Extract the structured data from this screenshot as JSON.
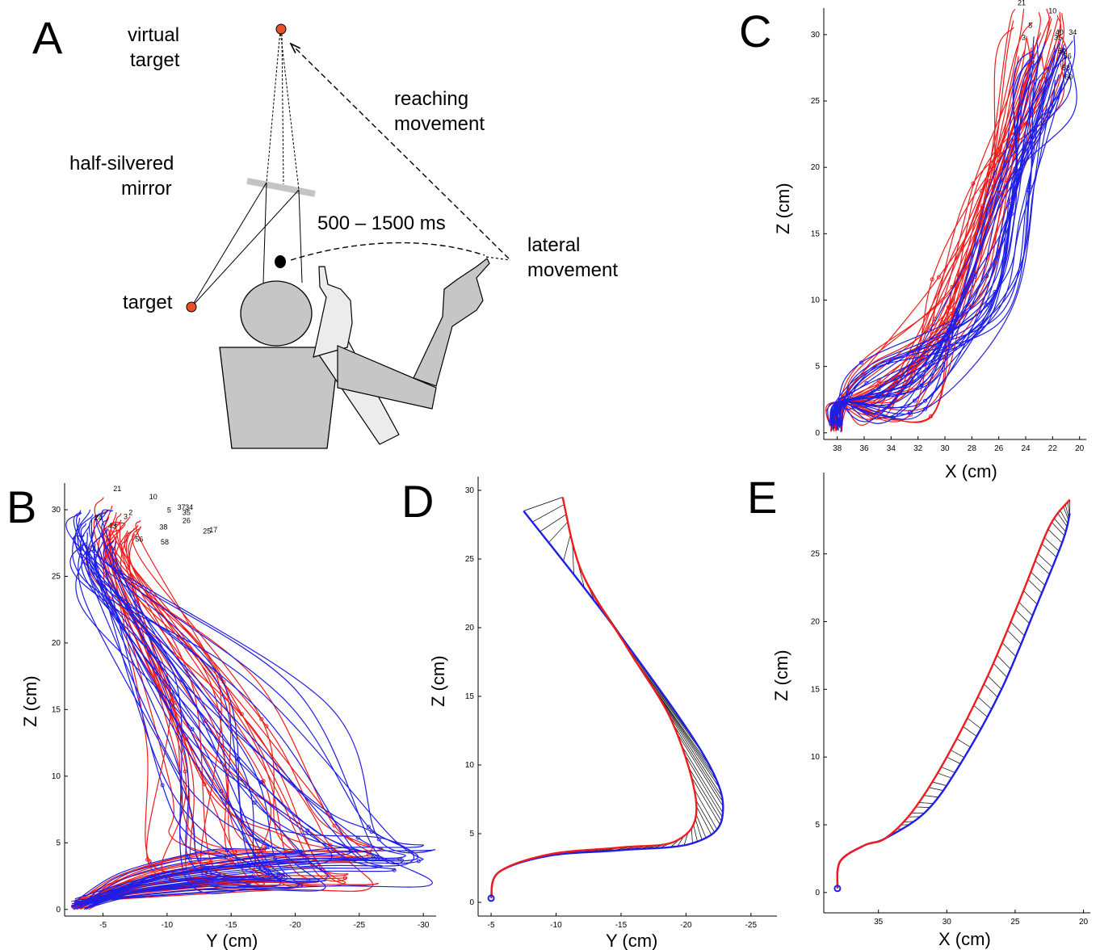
{
  "panels": {
    "A": "A",
    "B": "B",
    "C": "C",
    "D": "D",
    "E": "E"
  },
  "diagram": {
    "virtual_target_1": "virtual",
    "virtual_target_2": "target",
    "reaching_1": "reaching",
    "reaching_2": "movement",
    "mirror_1": "half-silvered",
    "mirror_2": "mirror",
    "timing": "500 – 1500 ms",
    "lateral_1": "lateral",
    "lateral_2": "movement",
    "target": "target"
  },
  "colors": {
    "red": "#ee1c1c",
    "blue": "#1e1ee6",
    "target_dot": "#e8502a",
    "body_gray": "#c6c6c6",
    "light_gray": "#ececec"
  },
  "chart_data": [
    {
      "panel": "B",
      "type": "line",
      "xlabel": "Y (cm)",
      "ylabel": "Z (cm)",
      "xticks": [
        -5,
        -10,
        -15,
        -20,
        -25,
        -30
      ],
      "yticks": [
        0,
        5,
        10,
        15,
        20,
        25,
        30
      ],
      "xlim": [
        -2,
        -31
      ],
      "ylim": [
        -0.5,
        32
      ],
      "start": [
        -3,
        0
      ],
      "series": [
        {
          "color": "red",
          "count": 30,
          "end_range_y": [
            -5,
            -8
          ],
          "end_range_z": [
            27,
            31
          ]
        },
        {
          "color": "blue",
          "count": 30,
          "end_range_y": [
            -3,
            -6
          ],
          "end_range_z": [
            27,
            30
          ]
        }
      ],
      "trial_labels": [
        "21",
        "10",
        "5",
        "24",
        "2",
        "3",
        "34",
        "17",
        "37",
        "35",
        "26",
        "43",
        "25",
        "38",
        "56",
        "58"
      ]
    },
    {
      "panel": "C",
      "type": "line",
      "xlabel": "X (cm)",
      "ylabel": "Z (cm)",
      "xticks": [
        38,
        36,
        34,
        32,
        30,
        28,
        26,
        24,
        22,
        20
      ],
      "yticks": [
        0,
        5,
        10,
        15,
        20,
        25,
        30
      ],
      "xlim": [
        39,
        19.5
      ],
      "ylim": [
        -0.5,
        32
      ],
      "start": [
        38,
        0
      ],
      "trial_labels": [
        "21",
        "10",
        "5",
        "3",
        "34",
        "35",
        "40",
        "50",
        "56",
        "58",
        "60"
      ]
    },
    {
      "panel": "D",
      "type": "line",
      "xlabel": "Y (cm)",
      "ylabel": "Z (cm)",
      "xticks": [
        -5,
        -10,
        -15,
        -20,
        -25
      ],
      "yticks": [
        0,
        5,
        10,
        15,
        20,
        25,
        30
      ],
      "xlim": [
        -4,
        -27
      ],
      "ylim": [
        -1,
        31
      ],
      "red_mean": [
        [
          -5,
          0.3
        ],
        [
          -5.6,
          2.2
        ],
        [
          -9.5,
          3.5
        ],
        [
          -15,
          4
        ],
        [
          -19.3,
          4.5
        ],
        [
          -20.8,
          7
        ],
        [
          -19,
          13
        ],
        [
          -15.5,
          18.5
        ],
        [
          -12,
          24
        ],
        [
          -10.5,
          29.5
        ]
      ],
      "blue_mean": [
        [
          -5,
          0.3
        ],
        [
          -5.6,
          2.2
        ],
        [
          -9.5,
          3.4
        ],
        [
          -15,
          3.8
        ],
        [
          -20.5,
          4.3
        ],
        [
          -22.8,
          6.2
        ],
        [
          -21.5,
          10.5
        ],
        [
          -14.5,
          20
        ],
        [
          -7.5,
          28.5
        ]
      ]
    },
    {
      "panel": "E",
      "type": "line",
      "xlabel": "X (cm)",
      "ylabel": "Z (cm)",
      "xticks": [
        35,
        30,
        25,
        20
      ],
      "yticks": [
        0,
        5,
        10,
        15,
        20,
        25
      ],
      "xlim": [
        39,
        19.5
      ],
      "ylim": [
        -1.5,
        31
      ],
      "red_mean": [
        [
          38,
          0.3
        ],
        [
          37.8,
          2.3
        ],
        [
          36,
          3.5
        ],
        [
          34.5,
          4
        ],
        [
          32.5,
          6
        ],
        [
          30,
          10
        ],
        [
          27,
          16
        ],
        [
          24.5,
          22
        ],
        [
          22.5,
          27
        ],
        [
          21,
          29
        ]
      ],
      "blue_mean": [
        [
          38,
          0.3
        ],
        [
          37.8,
          2.3
        ],
        [
          36,
          3.5
        ],
        [
          34.5,
          4
        ],
        [
          31.5,
          6
        ],
        [
          29,
          9.5
        ],
        [
          26,
          15
        ],
        [
          23.5,
          21
        ],
        [
          21.5,
          26
        ],
        [
          21,
          28
        ]
      ]
    }
  ]
}
